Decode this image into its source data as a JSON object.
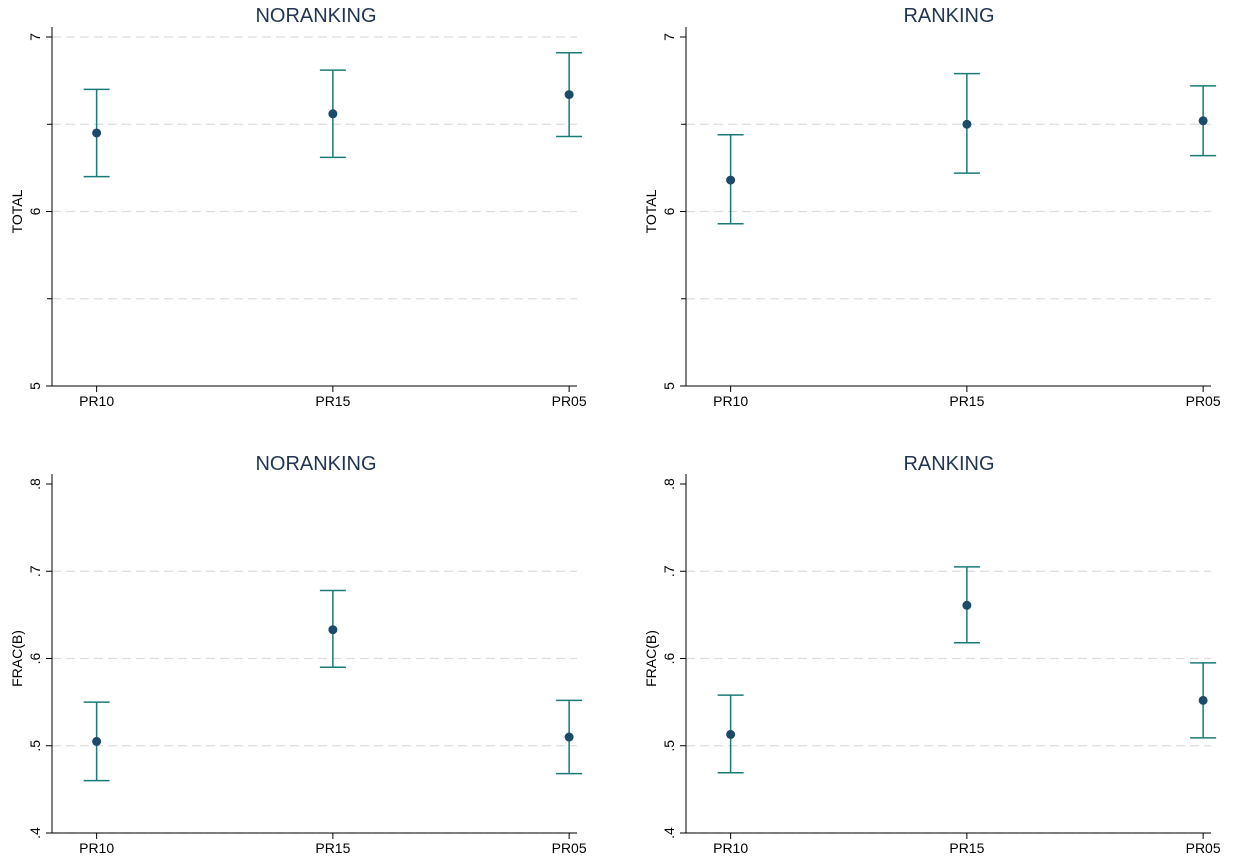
{
  "colors": {
    "title": "#1f3552",
    "errorbar": "#1a7a78",
    "point": "#1b4a6b",
    "axis": "#000000",
    "grid": "#dddddd"
  },
  "chart_data": [
    {
      "type": "scatter",
      "title": "NORANKING",
      "categories": [
        "PR10",
        "PR15",
        "PR05"
      ],
      "ylabel": "TOTAL",
      "ylim": [
        5,
        7
      ],
      "yticks": [
        5,
        6,
        7
      ],
      "ytick_labels": [
        "5",
        "6",
        "7"
      ],
      "gridlines": [
        5.5,
        6,
        6.5,
        7
      ],
      "grid": true,
      "values": [
        6.45,
        6.56,
        6.67
      ],
      "ci_low": [
        6.2,
        6.31,
        6.43
      ],
      "ci_high": [
        6.7,
        6.81,
        6.91
      ]
    },
    {
      "type": "scatter",
      "title": "RANKING",
      "categories": [
        "PR10",
        "PR15",
        "PR05"
      ],
      "ylabel": "TOTAL",
      "ylim": [
        5,
        7
      ],
      "yticks": [
        5,
        6,
        7
      ],
      "ytick_labels": [
        "5",
        "6",
        "7"
      ],
      "gridlines": [
        5.5,
        6,
        6.5
      ],
      "grid": true,
      "values": [
        6.18,
        6.5,
        6.52
      ],
      "ci_low": [
        5.93,
        6.22,
        6.32
      ],
      "ci_high": [
        6.44,
        6.79,
        6.72
      ]
    },
    {
      "type": "scatter",
      "title": "NORANKING",
      "categories": [
        "PR10",
        "PR15",
        "PR05"
      ],
      "ylabel": "FRAC(B)",
      "ylim": [
        0.4,
        0.8
      ],
      "yticks": [
        0.4,
        0.5,
        0.6,
        0.7,
        0.8
      ],
      "ytick_labels": [
        ".4",
        ".5",
        ".6",
        ".7",
        ".8"
      ],
      "gridlines": [
        0.4,
        0.5,
        0.6,
        0.7
      ],
      "grid": true,
      "values": [
        0.505,
        0.633,
        0.51
      ],
      "ci_low": [
        0.46,
        0.59,
        0.468
      ],
      "ci_high": [
        0.55,
        0.678,
        0.552
      ]
    },
    {
      "type": "scatter",
      "title": "RANKING",
      "categories": [
        "PR10",
        "PR15",
        "PR05"
      ],
      "ylabel": "FRAC(B)",
      "ylim": [
        0.4,
        0.8
      ],
      "yticks": [
        0.4,
        0.5,
        0.6,
        0.7,
        0.8
      ],
      "ytick_labels": [
        ".4",
        ".5",
        ".6",
        ".7",
        ".8"
      ],
      "gridlines": [
        0.4,
        0.5,
        0.6,
        0.7
      ],
      "grid": true,
      "values": [
        0.513,
        0.661,
        0.552
      ],
      "ci_low": [
        0.469,
        0.618,
        0.509
      ],
      "ci_high": [
        0.558,
        0.705,
        0.595
      ]
    }
  ]
}
